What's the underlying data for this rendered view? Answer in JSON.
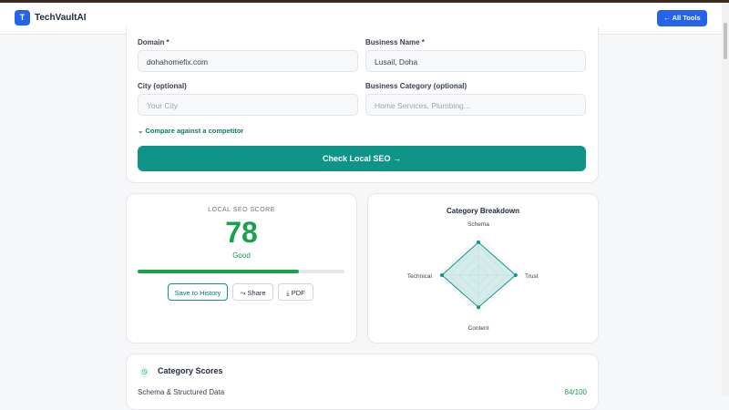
{
  "header": {
    "brand_initial": "T",
    "brand": "TechVaultAI",
    "nav_button": "← All Tools"
  },
  "form": {
    "fields": [
      {
        "label": "Domain *",
        "value": "dohahomefix.com",
        "placeholder": false
      },
      {
        "label": "Business Name *",
        "value": "Lusail, Doha",
        "placeholder": false
      },
      {
        "label": "City (optional)",
        "value": "Your City",
        "placeholder": true
      },
      {
        "label": "Business Category (optional)",
        "value": "Home Services, Plumbing...",
        "placeholder": true
      }
    ],
    "competitor_toggle": "Compare against a competitor",
    "submit": "Check Local SEO →"
  },
  "score": {
    "heading": "LOCAL SEO SCORE",
    "value": 78,
    "max": 100,
    "rating": "Good",
    "actions": [
      "Save to History",
      "Share",
      "PDF"
    ]
  },
  "chart_data": {
    "type": "radar",
    "title": "Category Breakdown",
    "categories": [
      "Schema",
      "Trust",
      "Content",
      "Technical"
    ],
    "values": [
      84,
      95,
      82,
      93
    ],
    "ylim": [
      0,
      100
    ],
    "color": "#0f9488"
  },
  "category_scores": {
    "title": "Category Scores",
    "rows": [
      {
        "name": "Schema & Structured Data",
        "score": "84/100"
      }
    ]
  }
}
